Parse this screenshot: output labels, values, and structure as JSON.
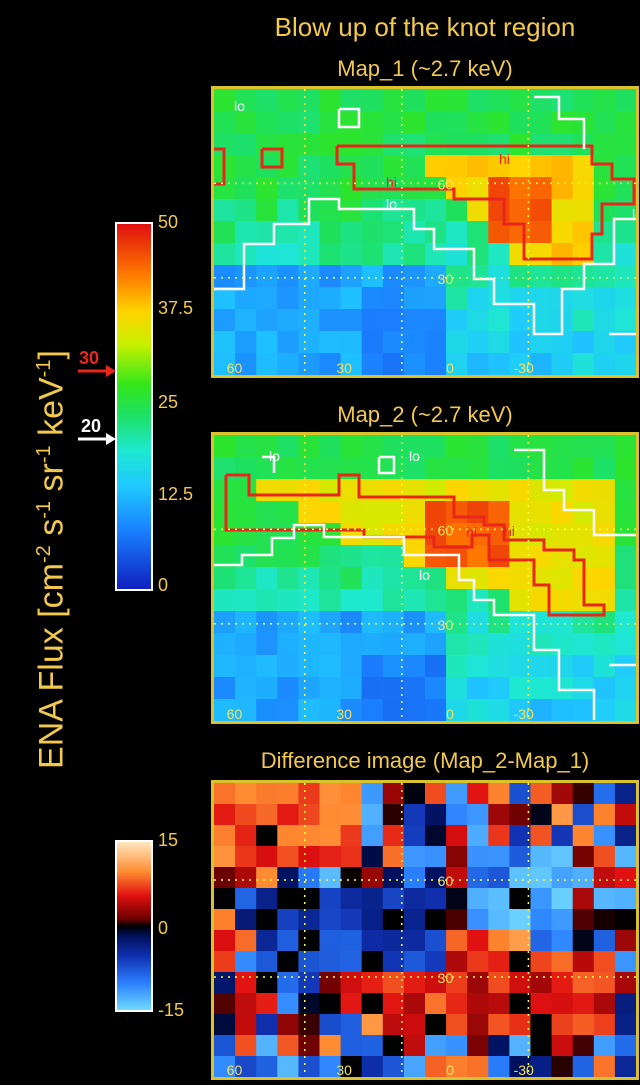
{
  "figure": {
    "title": "Blow up of the knot region",
    "y_axis_label_parts": [
      "ENA Flux [cm",
      "-2",
      " s",
      "-1",
      " sr",
      "-1",
      " keV",
      "-1",
      "]"
    ]
  },
  "panels": [
    {
      "id": "map1",
      "title": "Map_1 (~2.7 keV)",
      "contour_labels": [
        "lo",
        "hi",
        "hi",
        "lo",
        "lo"
      ],
      "lat_labels": [
        "60",
        "30"
      ],
      "lon_labels": [
        "60",
        "30",
        "0",
        "-30"
      ]
    },
    {
      "id": "map2",
      "title": "Map_2 (~2.7 keV)",
      "contour_labels": [
        "lo",
        "lo",
        "hi",
        "hi",
        "lo"
      ],
      "lat_labels": [
        "60",
        "30"
      ],
      "lon_labels": [
        "60",
        "30",
        "0",
        "-30"
      ]
    },
    {
      "id": "diff",
      "title": "Difference image (Map_2-Map_1)",
      "lat_labels": [
        "60",
        "30"
      ],
      "lon_labels": [
        "60",
        "30",
        "0",
        "-30"
      ]
    }
  ],
  "colorbar_flux": {
    "ticks": [
      "50",
      "37.5",
      "25",
      "12.5",
      "0"
    ],
    "markers": [
      {
        "label": "30",
        "color": "#e8261c"
      },
      {
        "label": "20",
        "color": "#ffffff"
      }
    ]
  },
  "colorbar_diff": {
    "ticks": [
      "15",
      "0",
      "-15"
    ]
  },
  "colors": {
    "title": "#f2c94c",
    "frame": "#d9c22b",
    "contour_hi": "#e8261c",
    "contour_lo": "#ffffff",
    "grid": "#ffff44"
  }
}
